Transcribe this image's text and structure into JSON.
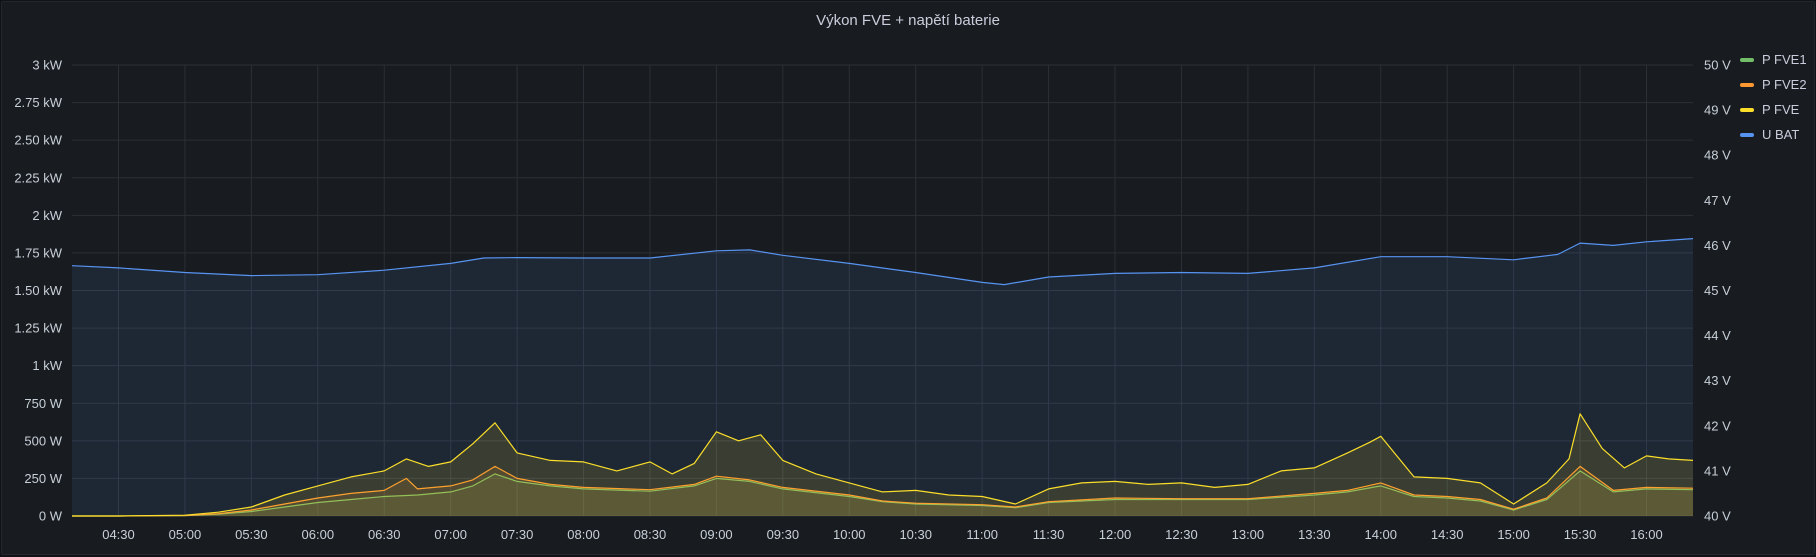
{
  "panel": {
    "title": "Výkon FVE + napětí baterie"
  },
  "chart_data": {
    "type": "line",
    "title": "Výkon FVE + napětí baterie",
    "x_unit": "time (HH:MM)",
    "xlim": [
      "04:09",
      "16:21"
    ],
    "x_ticks": [
      "04:30",
      "05:00",
      "05:30",
      "06:00",
      "06:30",
      "07:00",
      "07:30",
      "08:00",
      "08:30",
      "09:00",
      "09:30",
      "10:00",
      "10:30",
      "11:00",
      "11:30",
      "12:00",
      "12:30",
      "13:00",
      "13:30",
      "14:00",
      "14:30",
      "15:00",
      "15:30",
      "16:00"
    ],
    "y_left": {
      "unit": "W",
      "ylim": [
        0,
        3000
      ],
      "ticks": [
        0,
        250,
        500,
        750,
        1000,
        1250,
        1500,
        1750,
        2000,
        2250,
        2500,
        2750,
        3000
      ],
      "tick_labels": [
        "0 W",
        "250 W",
        "500 W",
        "750 W",
        "1 kW",
        "1.25 kW",
        "1.50 kW",
        "1.75 kW",
        "2 kW",
        "2.25 kW",
        "2.50 kW",
        "2.75 kW",
        "3 kW"
      ]
    },
    "y_right": {
      "unit": "V",
      "ylim": [
        40,
        50
      ],
      "ticks": [
        40,
        41,
        42,
        43,
        44,
        45,
        46,
        47,
        48,
        49,
        50
      ],
      "tick_labels": [
        "40 V",
        "41 V",
        "42 V",
        "43 V",
        "44 V",
        "45 V",
        "46 V",
        "47 V",
        "48 V",
        "49 V",
        "50 V"
      ]
    },
    "grid": true,
    "legend": "right",
    "series": [
      {
        "name": "P FVE1",
        "color": "#73bf69",
        "axis": "left",
        "fill": true,
        "x": [
          "04:09",
          "04:30",
          "05:00",
          "05:15",
          "05:30",
          "05:45",
          "06:00",
          "06:15",
          "06:30",
          "06:45",
          "07:00",
          "07:10",
          "07:20",
          "07:30",
          "07:45",
          "08:00",
          "08:30",
          "08:50",
          "09:00",
          "09:15",
          "09:30",
          "10:00",
          "10:15",
          "10:30",
          "11:00",
          "11:15",
          "11:30",
          "12:00",
          "12:30",
          "13:00",
          "13:30",
          "13:45",
          "14:00",
          "14:15",
          "14:30",
          "14:45",
          "15:00",
          "15:15",
          "15:30",
          "15:45",
          "16:00",
          "16:21"
        ],
        "y": [
          0,
          0,
          2,
          12,
          30,
          60,
          90,
          110,
          130,
          140,
          160,
          200,
          280,
          230,
          200,
          180,
          165,
          200,
          250,
          230,
          180,
          130,
          95,
          80,
          70,
          55,
          90,
          110,
          110,
          110,
          140,
          160,
          200,
          130,
          120,
          100,
          40,
          110,
          300,
          160,
          180,
          175
        ]
      },
      {
        "name": "P FVE2",
        "color": "#ff9830",
        "axis": "left",
        "fill": true,
        "x": [
          "04:09",
          "04:30",
          "05:00",
          "05:15",
          "05:30",
          "05:45",
          "06:00",
          "06:15",
          "06:30",
          "06:40",
          "06:45",
          "07:00",
          "07:10",
          "07:20",
          "07:30",
          "07:45",
          "08:00",
          "08:30",
          "08:50",
          "09:00",
          "09:15",
          "09:30",
          "10:00",
          "10:15",
          "10:30",
          "11:00",
          "11:15",
          "11:30",
          "12:00",
          "12:30",
          "13:00",
          "13:30",
          "13:45",
          "14:00",
          "14:15",
          "14:30",
          "14:45",
          "15:00",
          "15:15",
          "15:30",
          "15:45",
          "16:00",
          "16:21"
        ],
        "y": [
          0,
          0,
          3,
          15,
          40,
          80,
          120,
          150,
          170,
          250,
          180,
          200,
          240,
          330,
          250,
          210,
          190,
          175,
          210,
          265,
          240,
          190,
          140,
          100,
          85,
          75,
          60,
          95,
          120,
          115,
          115,
          150,
          170,
          220,
          140,
          130,
          110,
          45,
          120,
          330,
          170,
          190,
          185
        ]
      },
      {
        "name": "P FVE",
        "color": "#fade2a",
        "axis": "left",
        "fill": true,
        "x": [
          "04:09",
          "04:30",
          "05:00",
          "05:15",
          "05:30",
          "05:45",
          "06:00",
          "06:15",
          "06:30",
          "06:40",
          "06:50",
          "07:00",
          "07:10",
          "07:20",
          "07:30",
          "07:45",
          "08:00",
          "08:15",
          "08:30",
          "08:40",
          "08:50",
          "09:00",
          "09:10",
          "09:20",
          "09:30",
          "09:45",
          "10:00",
          "10:15",
          "10:30",
          "10:45",
          "11:00",
          "11:15",
          "11:30",
          "11:45",
          "12:00",
          "12:15",
          "12:30",
          "12:45",
          "13:00",
          "13:15",
          "13:30",
          "13:45",
          "13:55",
          "14:00",
          "14:15",
          "14:30",
          "14:45",
          "15:00",
          "15:15",
          "15:25",
          "15:30",
          "15:40",
          "15:50",
          "16:00",
          "16:10",
          "16:21"
        ],
        "y": [
          0,
          0,
          5,
          25,
          60,
          140,
          200,
          260,
          300,
          380,
          330,
          360,
          480,
          620,
          420,
          370,
          360,
          300,
          360,
          280,
          350,
          560,
          500,
          540,
          370,
          280,
          220,
          160,
          170,
          140,
          130,
          80,
          180,
          220,
          230,
          210,
          220,
          190,
          210,
          300,
          320,
          420,
          490,
          530,
          260,
          250,
          220,
          80,
          220,
          380,
          680,
          450,
          320,
          400,
          380,
          370
        ]
      },
      {
        "name": "U BAT",
        "color": "#5794f2",
        "axis": "right",
        "fill": true,
        "x": [
          "04:09",
          "04:30",
          "05:00",
          "05:30",
          "06:00",
          "06:30",
          "07:00",
          "07:15",
          "07:30",
          "08:00",
          "08:30",
          "09:00",
          "09:15",
          "09:30",
          "10:00",
          "10:30",
          "11:00",
          "11:10",
          "11:30",
          "12:00",
          "12:30",
          "13:00",
          "13:30",
          "14:00",
          "14:30",
          "15:00",
          "15:20",
          "15:30",
          "15:45",
          "16:00",
          "16:21"
        ],
        "y": [
          45.55,
          45.5,
          45.4,
          45.33,
          45.35,
          45.45,
          45.6,
          45.72,
          45.73,
          45.72,
          45.72,
          45.88,
          45.9,
          45.78,
          45.6,
          45.4,
          45.18,
          45.13,
          45.3,
          45.38,
          45.4,
          45.38,
          45.5,
          45.75,
          45.75,
          45.68,
          45.8,
          46.05,
          46.0,
          46.08,
          46.15
        ]
      }
    ]
  }
}
